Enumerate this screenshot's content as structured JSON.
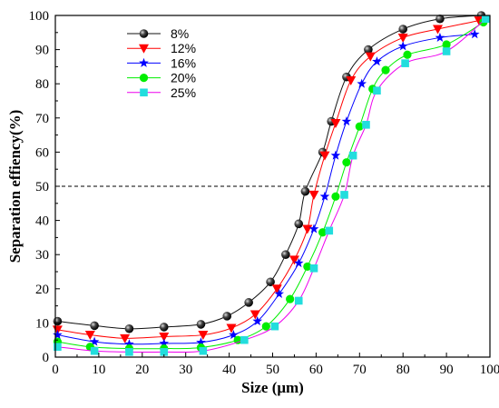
{
  "chart_data": {
    "type": "line",
    "title": "",
    "xlabel": "Size (μm)",
    "ylabel": "Separation effiency(%)",
    "xlim": [
      0,
      100
    ],
    "ylim": [
      0,
      100
    ],
    "xticks": [
      0,
      10,
      20,
      30,
      40,
      50,
      60,
      70,
      80,
      90,
      100
    ],
    "yticks": [
      0,
      10,
      20,
      30,
      40,
      50,
      60,
      70,
      80,
      90,
      100
    ],
    "grid": false,
    "legend_position": "top-left",
    "reference_line": {
      "y": 50,
      "style": "dashed"
    },
    "series": [
      {
        "name": "8%",
        "color": "#111111",
        "marker": "sphere",
        "x": [
          0.5,
          9,
          17,
          25,
          33.5,
          39.5,
          44.5,
          49.5,
          53,
          56,
          57.5,
          61.5,
          63.5,
          67,
          72,
          80,
          88.5,
          98
        ],
        "y": [
          10.5,
          9.2,
          8.3,
          8.8,
          9.6,
          12,
          16,
          22,
          30,
          39,
          48.5,
          60,
          69,
          82,
          90,
          96,
          99,
          100
        ]
      },
      {
        "name": "12%",
        "color": "#ff0000",
        "marker": "triangle-down",
        "x": [
          0.5,
          8,
          16,
          25,
          34,
          40.5,
          46,
          51,
          55,
          58,
          59.5,
          62,
          64.5,
          68,
          72.5,
          80,
          88,
          97.5
        ],
        "y": [
          8,
          6.5,
          5.5,
          6,
          6.5,
          8.5,
          12.5,
          20,
          28.5,
          37.5,
          47.5,
          59,
          68.5,
          81,
          88,
          93.5,
          96,
          98.5
        ]
      },
      {
        "name": "16%",
        "color": "#0000ff",
        "marker": "star",
        "x": [
          0.5,
          9,
          17,
          25,
          33.5,
          41,
          46.5,
          51.5,
          56,
          59.5,
          62,
          64.5,
          67,
          70.5,
          74,
          80,
          88.5,
          96.5
        ],
        "y": [
          6.5,
          4.5,
          3.8,
          4,
          4.3,
          6.5,
          10.5,
          18.5,
          27.5,
          37.5,
          47,
          59,
          69,
          80,
          86.5,
          91,
          93.5,
          94.5
        ]
      },
      {
        "name": "20%",
        "color": "#00ee00",
        "marker": "circle",
        "x": [
          0.5,
          8,
          17,
          25,
          33.5,
          42,
          48.5,
          54,
          58,
          61.5,
          64.5,
          67,
          70,
          73,
          76,
          81,
          90,
          98.5
        ],
        "y": [
          4.5,
          3,
          2.5,
          2.5,
          2.8,
          5,
          9,
          17,
          26.5,
          36.5,
          47,
          57,
          67.5,
          78.5,
          84,
          88.5,
          91.5,
          98
        ]
      },
      {
        "name": "25%",
        "color": "#ee00ee",
        "marker": "square",
        "marker_color": "#22dddd",
        "x": [
          0.5,
          9,
          17,
          25,
          34,
          43.5,
          50.5,
          56,
          59.5,
          63,
          66.5,
          68.5,
          71.5,
          74,
          80.5,
          90,
          99
        ],
        "y": [
          3,
          1.8,
          1.5,
          1.5,
          1.8,
          5,
          9,
          16.5,
          26,
          37,
          47.5,
          59,
          68,
          78,
          86,
          89.5,
          99
        ]
      }
    ]
  }
}
